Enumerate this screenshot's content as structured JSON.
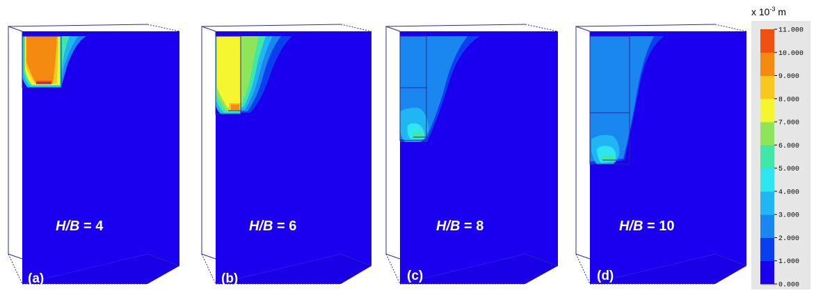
{
  "panels": [
    {
      "id": "a",
      "label": "(a)",
      "hb_prefix": "H/B",
      "hb_eq": " = 4"
    },
    {
      "id": "b",
      "label": "(b)",
      "hb_prefix": "H/B",
      "hb_eq": " = 6"
    },
    {
      "id": "c",
      "label": "(c)",
      "hb_prefix": "H/B",
      "hb_eq": " = 8"
    },
    {
      "id": "d",
      "label": "(d)",
      "hb_prefix": "H/B",
      "hb_eq": " = 10"
    }
  ],
  "colorbar": {
    "unit_prefix": "x 10",
    "unit_exp": "-3",
    "unit_suffix": " m",
    "ticks": [
      "11.000",
      "10.000",
      "9.000",
      "8.000",
      "7.000",
      "6.000",
      "5.000",
      "4.000",
      "3.000",
      "2.000",
      "1.000",
      "0.000"
    ],
    "colors": [
      "#1b00f0",
      "#0a3ff0",
      "#1a86f0",
      "#20b6f3",
      "#2ee6f0",
      "#3fe8a8",
      "#8ee55a",
      "#f5f530",
      "#f8c81e",
      "#f58a10",
      "#f25010"
    ]
  },
  "colors": {
    "background_blue": "#1b00f0",
    "frame_line": "#2b2b8f"
  }
}
